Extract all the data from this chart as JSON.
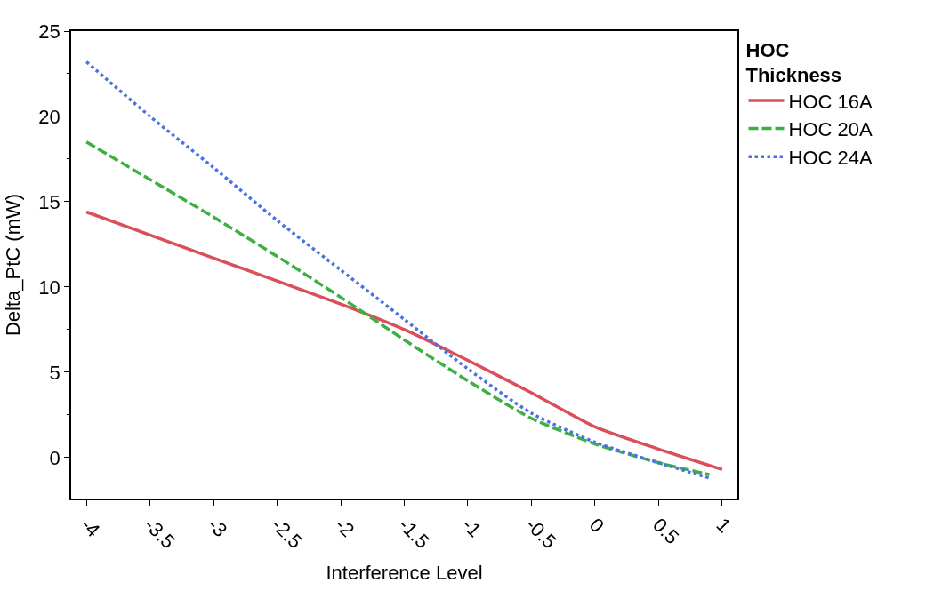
{
  "chart_data": {
    "type": "line",
    "xlabel": "Interference Level",
    "ylabel": "Delta_PtC (mW)",
    "legend_title": "HOC\nThickness",
    "xlim": [
      -4.12,
      1.12
    ],
    "ylim": [
      -2.4,
      25
    ],
    "xticks": [
      -4,
      -3.5,
      -3,
      -2.5,
      -2,
      -1.5,
      -1,
      -0.5,
      0,
      0.5,
      1
    ],
    "yticks": [
      0,
      5,
      10,
      15,
      20,
      25
    ],
    "legend": "top right",
    "marker": "none",
    "series": [
      {
        "name": "HOC 16A",
        "color": "#d9505a",
        "line_style": "solid",
        "x": [
          -4,
          -3,
          -2,
          -1.5,
          -1,
          -0.5,
          0,
          0.5,
          1
        ],
        "values": [
          14.4,
          11.7,
          9.0,
          7.5,
          5.7,
          3.8,
          1.8,
          0.5,
          -0.7
        ]
      },
      {
        "name": "HOC 20A",
        "color": "#3cb043",
        "line_style": "dashed",
        "x": [
          -4,
          -3.5,
          -3,
          -2.5,
          -2,
          -1.5,
          -1,
          -0.5,
          0,
          0.5,
          0.9
        ],
        "values": [
          18.5,
          16.3,
          14.1,
          11.8,
          9.4,
          6.9,
          4.5,
          2.3,
          0.8,
          -0.3,
          -1.0
        ]
      },
      {
        "name": "HOC 24A",
        "color": "#4a72e0",
        "line_style": "dotted",
        "x": [
          -4,
          -3.5,
          -3,
          -2.5,
          -2,
          -1.5,
          -1,
          -0.5,
          0,
          0.5,
          0.9
        ],
        "values": [
          23.2,
          20.0,
          17.0,
          13.9,
          11.0,
          8.1,
          5.2,
          2.6,
          0.9,
          -0.3,
          -1.2
        ]
      }
    ]
  }
}
